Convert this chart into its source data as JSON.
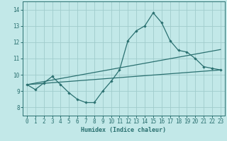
{
  "title": "",
  "xlabel": "Humidex (Indice chaleur)",
  "background_color": "#c2e8e8",
  "grid_color": "#a0cccc",
  "line_color": "#2a7070",
  "xlim": [
    -0.5,
    23.5
  ],
  "ylim": [
    7.5,
    14.5
  ],
  "xtick_values": [
    0,
    1,
    2,
    3,
    4,
    5,
    6,
    7,
    8,
    9,
    10,
    11,
    12,
    13,
    14,
    15,
    16,
    17,
    18,
    19,
    20,
    21,
    22,
    23
  ],
  "xtick_labels": [
    "0",
    "1",
    "2",
    "3",
    "4",
    "5",
    "6",
    "7",
    "8",
    "9",
    "10",
    "11",
    "12",
    "13",
    "14",
    "15",
    "16",
    "17",
    "18",
    "19",
    "20",
    "21",
    "22",
    "23"
  ],
  "ytick_values": [
    8,
    9,
    10,
    11,
    12,
    13,
    14
  ],
  "ytick_labels": [
    "8",
    "9",
    "10",
    "11",
    "12",
    "13",
    "14"
  ],
  "series1_x": [
    0,
    1,
    2,
    3,
    4,
    5,
    6,
    7,
    8,
    9,
    10,
    11,
    12,
    13,
    14,
    15,
    16,
    17,
    18,
    19,
    20,
    21,
    22,
    23
  ],
  "series1_y": [
    9.4,
    9.1,
    9.5,
    9.9,
    9.4,
    8.9,
    8.5,
    8.3,
    8.3,
    9.0,
    9.6,
    10.3,
    12.1,
    12.7,
    13.0,
    13.8,
    13.2,
    12.1,
    11.5,
    11.4,
    11.0,
    10.5,
    10.4,
    10.3
  ],
  "series2_x": [
    0,
    23
  ],
  "series2_y": [
    9.4,
    10.3
  ],
  "series3_x": [
    0,
    23
  ],
  "series3_y": [
    9.4,
    11.55
  ]
}
